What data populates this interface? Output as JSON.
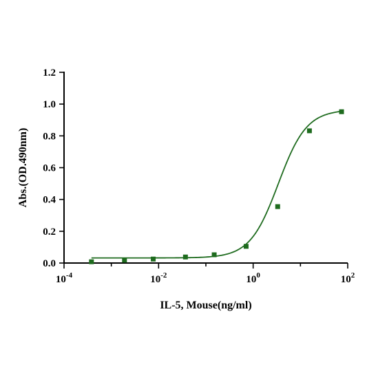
{
  "chart_data": {
    "type": "scatter",
    "xlabel": "IL-5, Mouse(ng/ml)",
    "ylabel": "Abs.(OD.490nm)",
    "x_scale": "log10",
    "xlim": [
      0.0001,
      100
    ],
    "ylim": [
      0,
      1.2
    ],
    "x_ticks": [
      {
        "base": "10",
        "exp": "-4"
      },
      {
        "base": "10",
        "exp": "-2"
      },
      {
        "base": "10",
        "exp": "0"
      },
      {
        "base": "10",
        "exp": "2"
      }
    ],
    "y_ticks": [
      "0.0",
      "0.2",
      "0.4",
      "0.6",
      "0.8",
      "1.0",
      "1.2"
    ],
    "grid": false,
    "color": "#1e6b1e",
    "series": [
      {
        "points": [
          {
            "x": 0.00038,
            "y": 0.008
          },
          {
            "x": 0.0019,
            "y": 0.018
          },
          {
            "x": 0.0077,
            "y": 0.025
          },
          {
            "x": 0.037,
            "y": 0.038
          },
          {
            "x": 0.15,
            "y": 0.052
          },
          {
            "x": 0.71,
            "y": 0.105
          },
          {
            "x": 3.3,
            "y": 0.355
          },
          {
            "x": 15.5,
            "y": 0.832
          },
          {
            "x": 74,
            "y": 0.952
          }
        ],
        "fit_curve": true
      }
    ]
  }
}
